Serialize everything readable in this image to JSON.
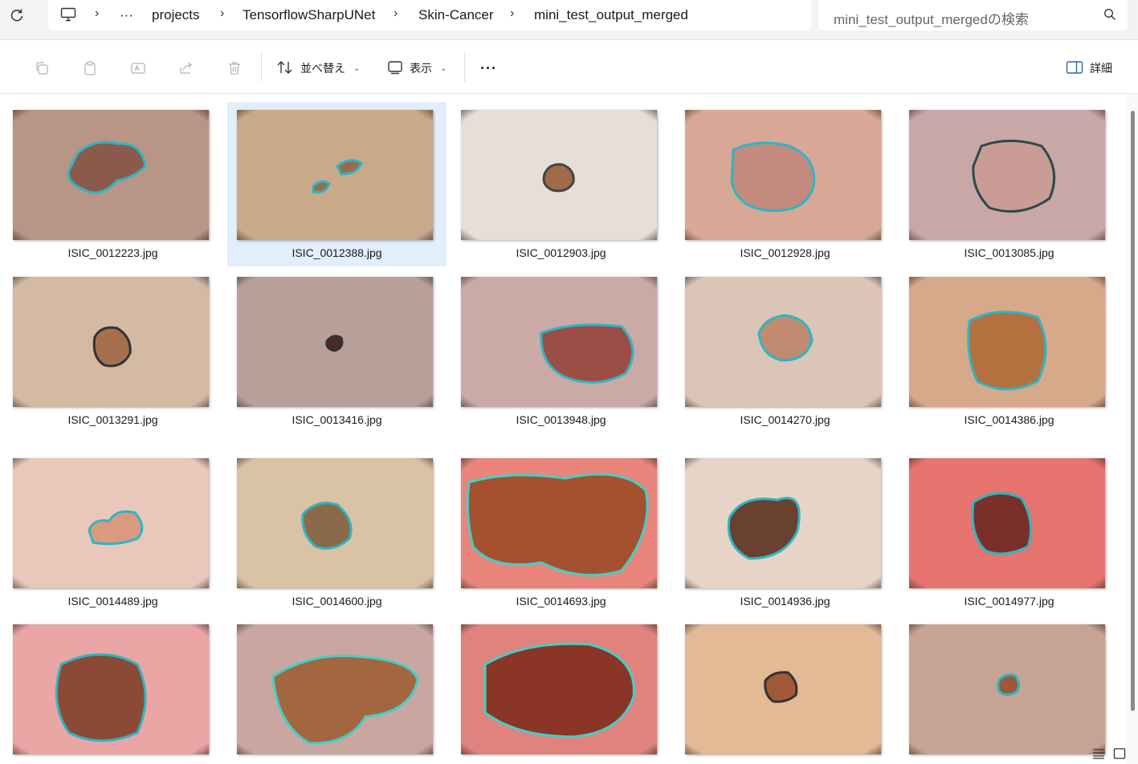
{
  "address": {
    "crumbs": [
      "projects",
      "TensorflowSharpUNet",
      "Skin-Cancer",
      "mini_test_output_merged"
    ],
    "overflow": "···",
    "search_placeholder": "mini_test_output_mergedの検索"
  },
  "toolbar": {
    "sort_label": "並べ替え",
    "view_label": "表示",
    "more_label": "···",
    "details_label": "詳細"
  },
  "files": [
    {
      "name": "ISIC_0012223.jpg",
      "skin": "#b89585",
      "lesion": "#8a5a4c",
      "ring": "#2bb6c4"
    },
    {
      "name": "ISIC_0012388.jpg",
      "skin": "#c9a98a",
      "lesion": "#9a6a4a",
      "ring": "#2bb6c4",
      "selected": true
    },
    {
      "name": "ISIC_0012903.jpg",
      "skin": "#e6dfd8",
      "lesion": "#a26a4a",
      "ring": "#444444"
    },
    {
      "name": "ISIC_0012928.jpg",
      "skin": "#d9a795",
      "lesion": "#c48a7d",
      "ring": "#2bb6c4"
    },
    {
      "name": "ISIC_0013085.jpg",
      "skin": "#c9a7a6",
      "lesion": "#c99d95",
      "ring": "#2a4a4a"
    },
    {
      "name": "ISIC_0013291.jpg",
      "skin": "#d4b9a3",
      "lesion": "#a6704e",
      "ring": "#333333"
    },
    {
      "name": "ISIC_0013416.jpg",
      "skin": "#b8a09a",
      "lesion": "#4a2a22",
      "ring": "#333333"
    },
    {
      "name": "ISIC_0013948.jpg",
      "skin": "#c9aaa7",
      "lesion": "#9c4d45",
      "ring": "#2bb6c4"
    },
    {
      "name": "ISIC_0014270.jpg",
      "skin": "#dbc5b7",
      "lesion": "#c08b70",
      "ring": "#2bb6c4"
    },
    {
      "name": "ISIC_0014386.jpg",
      "skin": "#d6a98a",
      "lesion": "#b5703f",
      "ring": "#2bb6c4"
    },
    {
      "name": "ISIC_0014489.jpg",
      "skin": "#e9c7ba",
      "lesion": "#d99a80",
      "ring": "#2bb6c4"
    },
    {
      "name": "ISIC_0014600.jpg",
      "skin": "#d9c3a4",
      "lesion": "#8b6a4a",
      "ring": "#2bb6c4"
    },
    {
      "name": "ISIC_0014693.jpg",
      "skin": "#e9857a",
      "lesion": "#a5502e",
      "ring": "#3fd0c8"
    },
    {
      "name": "ISIC_0014936.jpg",
      "skin": "#e7d4c7",
      "lesion": "#6a4030",
      "ring": "#2bb6c4"
    },
    {
      "name": "ISIC_0014977.jpg",
      "skin": "#e8746f",
      "lesion": "#7a2f2a",
      "ring": "#2bb6c4"
    },
    {
      "name": "",
      "skin": "#eaa5a5",
      "lesion": "#8a4a36",
      "ring": "#2bb6c4"
    },
    {
      "name": "",
      "skin": "#c9a7a0",
      "lesion": "#a2673f",
      "ring": "#3fd0c8"
    },
    {
      "name": "",
      "skin": "#e0837d",
      "lesion": "#8a3526",
      "ring": "#3fd0c8"
    },
    {
      "name": "",
      "skin": "#e3b996",
      "lesion": "#a05a3a",
      "ring": "#333333"
    },
    {
      "name": "",
      "skin": "#c6a393",
      "lesion": "#9a5a3a",
      "ring": "#2bb6c4"
    }
  ]
}
